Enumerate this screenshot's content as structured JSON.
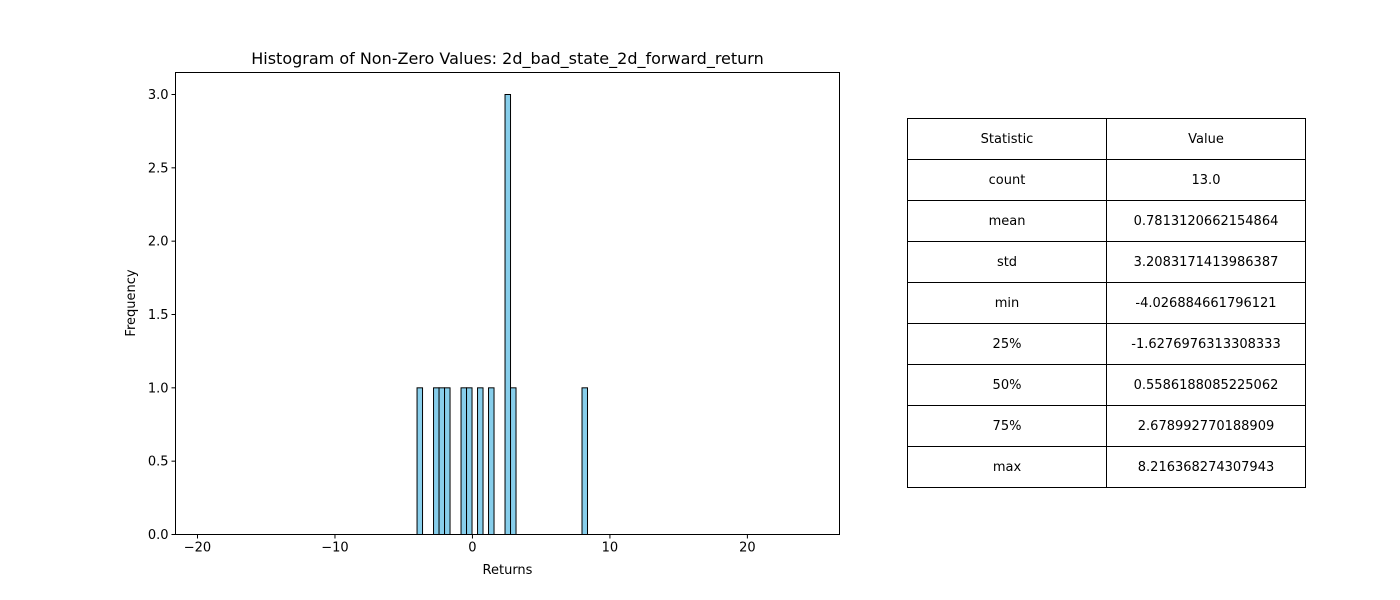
{
  "chart_data": {
    "type": "bar",
    "title": "Histogram of Non-Zero Values: 2d_bad_state_2d_forward_return",
    "xlabel": "Returns",
    "ylabel": "Frequency",
    "xlim": [
      -21.6,
      26.7
    ],
    "ylim": [
      0,
      3.15
    ],
    "xticks": [
      -20,
      -10,
      0,
      10,
      20
    ],
    "xtick_labels": [
      "−20",
      "−10",
      "0",
      "10",
      "20"
    ],
    "yticks": [
      0.0,
      0.5,
      1.0,
      1.5,
      2.0,
      2.5,
      3.0
    ],
    "ytick_labels": [
      "0.0",
      "0.5",
      "1.0",
      "1.5",
      "2.0",
      "2.5",
      "3.0"
    ],
    "bar_color": "#87ceeb",
    "edge_color": "#000000",
    "grid": false,
    "bins": [
      {
        "x0": -4.03,
        "x1": -3.63,
        "count": 1
      },
      {
        "x0": -2.83,
        "x1": -2.43,
        "count": 1
      },
      {
        "x0": -2.43,
        "x1": -2.03,
        "count": 1
      },
      {
        "x0": -2.03,
        "x1": -1.63,
        "count": 1
      },
      {
        "x0": -0.83,
        "x1": -0.43,
        "count": 1
      },
      {
        "x0": -0.43,
        "x1": -0.03,
        "count": 1
      },
      {
        "x0": 0.37,
        "x1": 0.77,
        "count": 1
      },
      {
        "x0": 1.17,
        "x1": 1.57,
        "count": 1
      },
      {
        "x0": 2.37,
        "x1": 2.77,
        "count": 3
      },
      {
        "x0": 2.77,
        "x1": 3.17,
        "count": 1
      },
      {
        "x0": 7.97,
        "x1": 8.37,
        "count": 1
      }
    ]
  },
  "table": {
    "headers": [
      "Statistic",
      "Value"
    ],
    "rows": [
      [
        "count",
        "13.0"
      ],
      [
        "mean",
        "0.7813120662154864"
      ],
      [
        "std",
        "3.2083171413986387"
      ],
      [
        "min",
        "-4.026884661796121"
      ],
      [
        "25%",
        "-1.6276976313308333"
      ],
      [
        "50%",
        "0.5586188085225062"
      ],
      [
        "75%",
        "2.678992770188909"
      ],
      [
        "max",
        "8.216368274307943"
      ]
    ]
  }
}
